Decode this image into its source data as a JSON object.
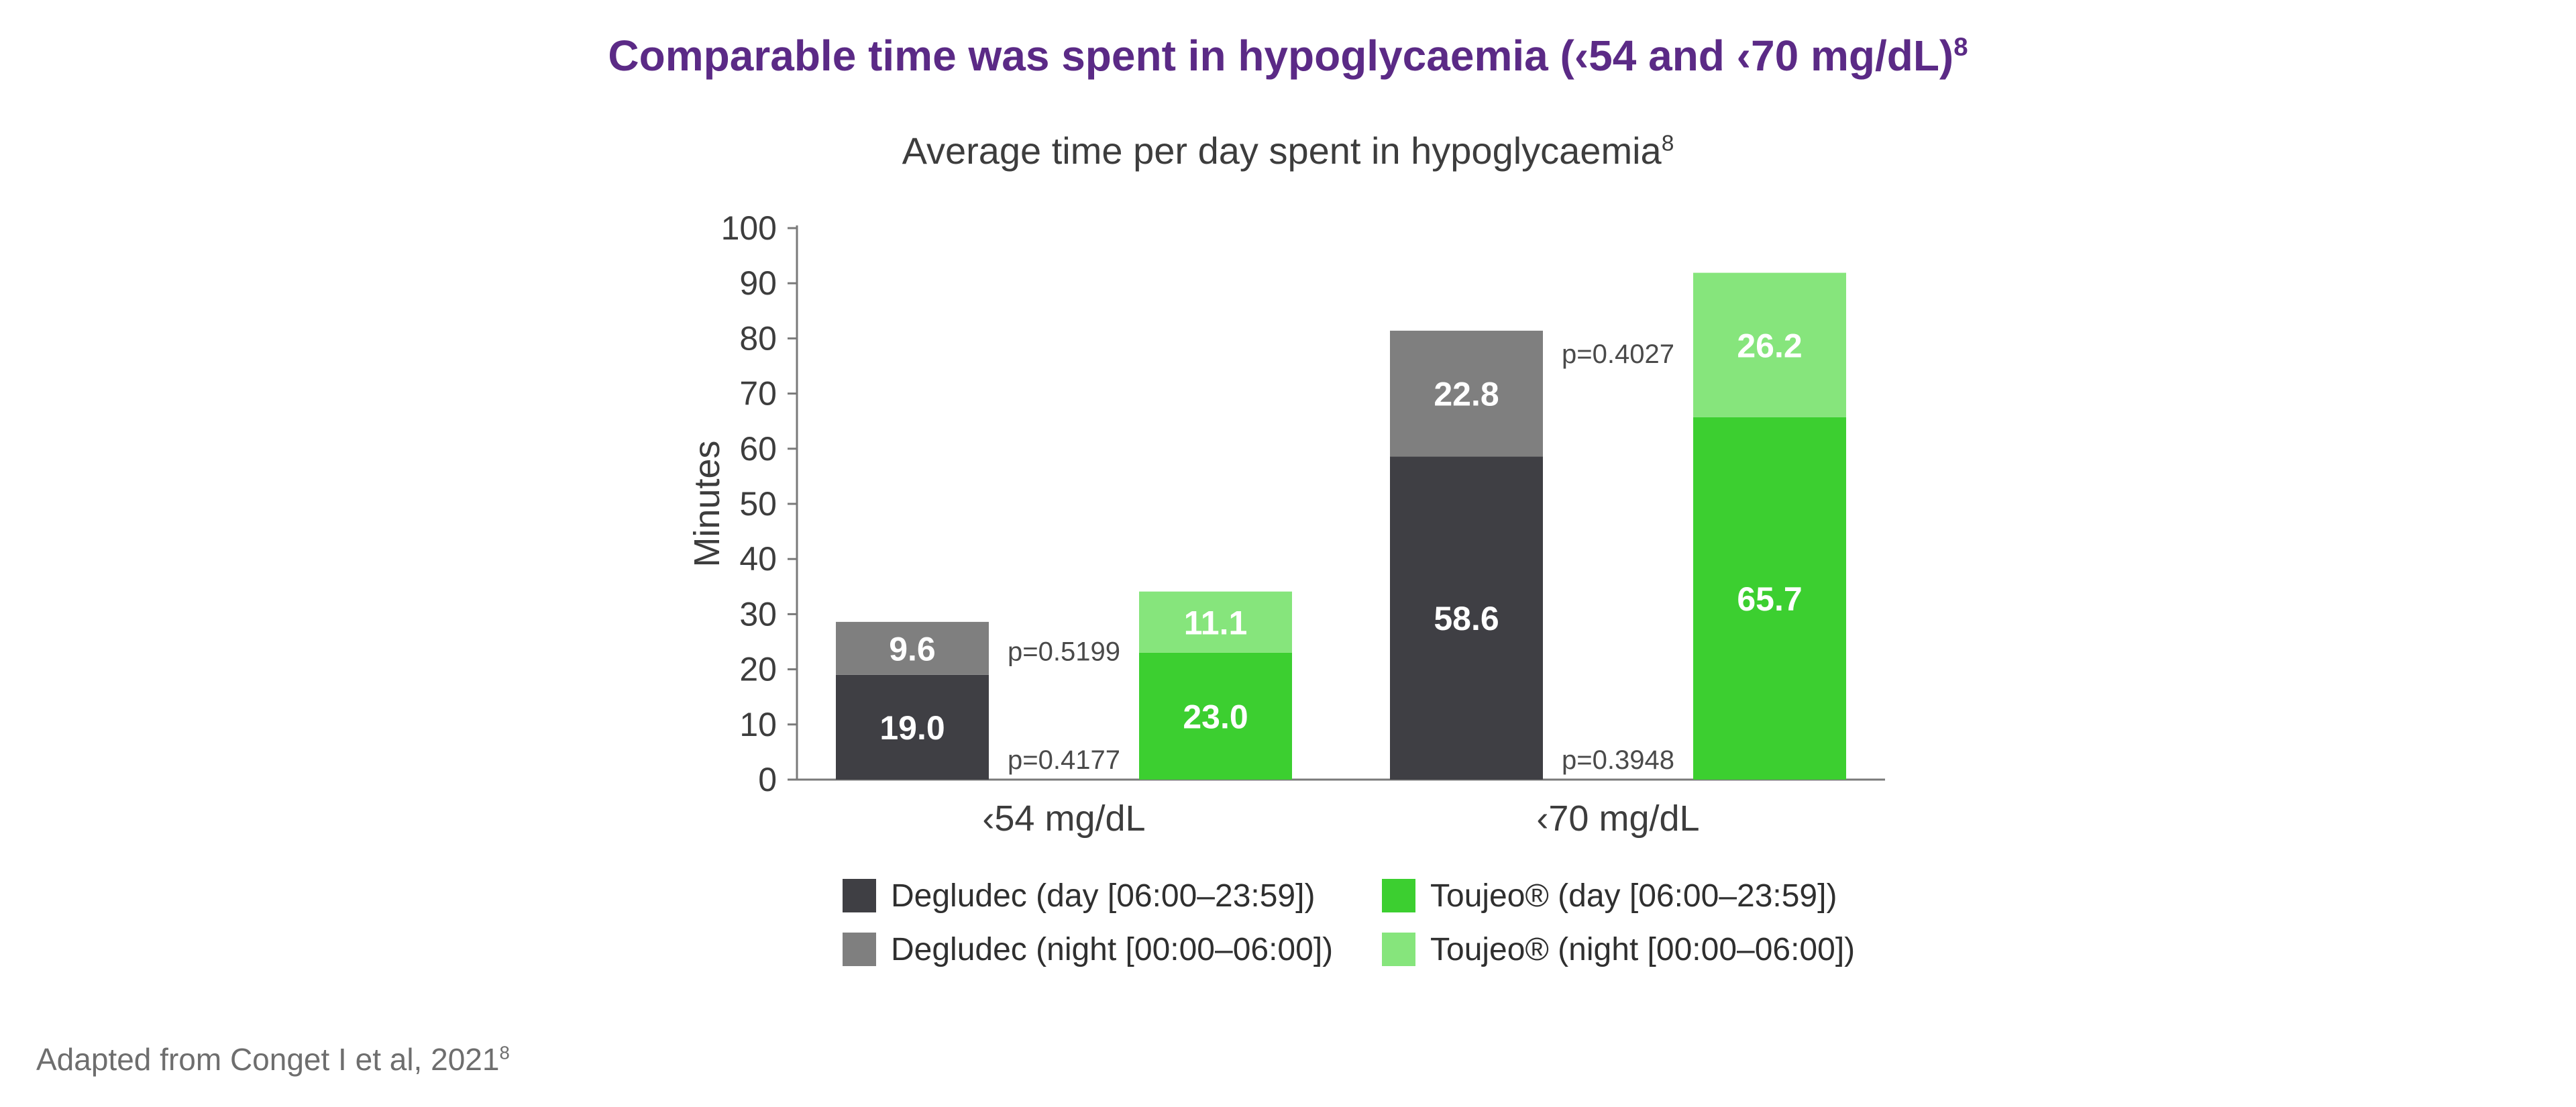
{
  "title": "Comparable time was spent in hypoglycaemia (‹54 and ‹70 mg/dL)",
  "title_sup": "8",
  "subtitle": "Average time per day spent in hypoglycaemia",
  "subtitle_sup": "8",
  "footnote": "Adapted from Conget I et al, 2021",
  "footnote_sup": "8",
  "chart_data": {
    "type": "bar",
    "stacked": true,
    "ylabel": "Minutes",
    "ylim": [
      0,
      100
    ],
    "yticks": [
      0,
      10,
      20,
      30,
      40,
      50,
      60,
      70,
      80,
      90,
      100
    ],
    "grid": false,
    "legend_position": "bottom",
    "groups": [
      {
        "label": "‹54 mg/dL",
        "bars": [
          {
            "treatment": "Degludec",
            "day": 19.0,
            "night": 9.6,
            "day_label": "19.0",
            "night_label": "9.6"
          },
          {
            "treatment": "Toujeo®",
            "day": 23.0,
            "night": 11.1,
            "day_label": "23.0",
            "night_label": "11.1"
          }
        ],
        "p_values": {
          "night": "p=0.5199",
          "day": "p=0.4177"
        }
      },
      {
        "label": "‹70 mg/dL",
        "bars": [
          {
            "treatment": "Degludec",
            "day": 58.6,
            "night": 22.8,
            "day_label": "58.6",
            "night_label": "22.8"
          },
          {
            "treatment": "Toujeo®",
            "day": 65.7,
            "night": 26.2,
            "day_label": "65.7",
            "night_label": "26.2"
          }
        ],
        "p_values": {
          "night": "p=0.4027",
          "day": "p=0.3948"
        }
      }
    ],
    "legend": [
      {
        "label": "Degludec (day [06:00–23:59])",
        "color": "#3f3f44"
      },
      {
        "label": "Toujeo® (day [06:00–23:59])",
        "color": "#3ccf30"
      },
      {
        "label": "Degludec (night [00:00–06:00])",
        "color": "#7f7f7f"
      },
      {
        "label": "Toujeo® (night [00:00–06:00])",
        "color": "#86e57c"
      }
    ],
    "colors": {
      "degludec_day": "#3f3f44",
      "degludec_night": "#7f7f7f",
      "toujeo_day": "#3ccf30",
      "toujeo_night": "#86e57c"
    }
  }
}
